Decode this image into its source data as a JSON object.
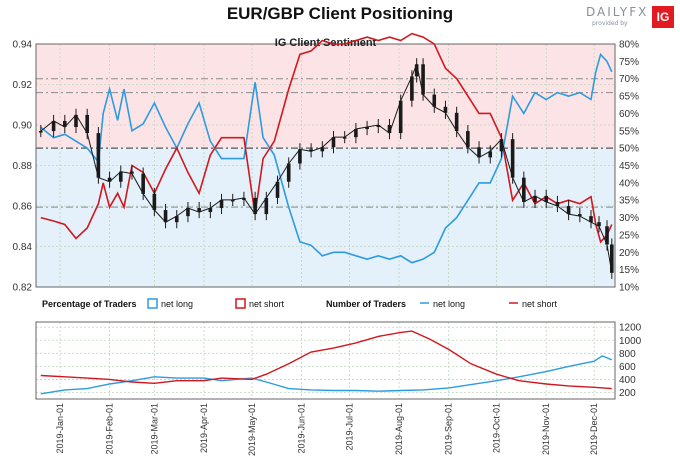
{
  "title": "EUR/GBP Client Positioning",
  "logo": {
    "text": "DAILYFX",
    "subtext": "provided by",
    "badge": "IG"
  },
  "colors": {
    "net_long": "#2e9be0",
    "net_short": "#d2171e",
    "price": "#1a1a1a",
    "short_bg": "#fce4e6",
    "long_bg": "#e4f1fb",
    "grid": "#bfd6bf"
  },
  "legend": {
    "pct_title": "Percentage of Traders",
    "count_title": "Number of Traders",
    "net_long": "net long",
    "net_short": "net short"
  },
  "chart_data": [
    {
      "type": "line",
      "title": "IG Client Sentiment",
      "y_left_ticks": [
        "0.94",
        "0.92",
        "0.90",
        "0.88",
        "0.86",
        "0.84",
        "0.82"
      ],
      "y_left_range": [
        0.82,
        0.94
      ],
      "y_right_ticks": [
        "80%",
        "75%",
        "70%",
        "65%",
        "60%",
        "55%",
        "50%",
        "45%",
        "40%",
        "35%",
        "30%",
        "25%",
        "20%",
        "15%",
        "10%"
      ],
      "y_right_range": [
        10,
        80
      ],
      "reference_levels_pct": [
        70,
        66,
        50,
        33
      ],
      "series": [
        {
          "name": "EUR/GBP",
          "unit": "price",
          "points": [
            [
              "2018-12-20",
              0.897
            ],
            [
              "2018-12-28",
              0.902
            ],
            [
              "2019-01-04",
              0.899
            ],
            [
              "2019-01-11",
              0.905
            ],
            [
              "2019-01-18",
              0.896
            ],
            [
              "2019-01-25",
              0.874
            ],
            [
              "2019-02-01",
              0.872
            ],
            [
              "2019-02-08",
              0.877
            ],
            [
              "2019-02-15",
              0.876
            ],
            [
              "2019-02-22",
              0.866
            ],
            [
              "2019-03-01",
              0.858
            ],
            [
              "2019-03-08",
              0.852
            ],
            [
              "2019-03-15",
              0.855
            ],
            [
              "2019-03-22",
              0.859
            ],
            [
              "2019-03-29",
              0.857
            ],
            [
              "2019-04-05",
              0.859
            ],
            [
              "2019-04-12",
              0.863
            ],
            [
              "2019-04-19",
              0.863
            ],
            [
              "2019-04-26",
              0.864
            ],
            [
              "2019-05-03",
              0.856
            ],
            [
              "2019-05-10",
              0.864
            ],
            [
              "2019-05-17",
              0.872
            ],
            [
              "2019-05-24",
              0.881
            ],
            [
              "2019-05-31",
              0.888
            ],
            [
              "2019-06-07",
              0.887
            ],
            [
              "2019-06-14",
              0.889
            ],
            [
              "2019-06-21",
              0.894
            ],
            [
              "2019-06-28",
              0.894
            ],
            [
              "2019-07-05",
              0.898
            ],
            [
              "2019-07-12",
              0.899
            ],
            [
              "2019-07-19",
              0.9
            ],
            [
              "2019-07-26",
              0.896
            ],
            [
              "2019-08-02",
              0.912
            ],
            [
              "2019-08-09",
              0.924
            ],
            [
              "2019-08-12",
              0.93
            ],
            [
              "2019-08-16",
              0.915
            ],
            [
              "2019-08-23",
              0.909
            ],
            [
              "2019-08-30",
              0.906
            ],
            [
              "2019-09-06",
              0.897
            ],
            [
              "2019-09-13",
              0.889
            ],
            [
              "2019-09-20",
              0.884
            ],
            [
              "2019-09-27",
              0.887
            ],
            [
              "2019-10-04",
              0.893
            ],
            [
              "2019-10-11",
              0.874
            ],
            [
              "2019-10-18",
              0.862
            ],
            [
              "2019-10-25",
              0.865
            ],
            [
              "2019-11-01",
              0.862
            ],
            [
              "2019-11-08",
              0.86
            ],
            [
              "2019-11-15",
              0.856
            ],
            [
              "2019-11-22",
              0.855
            ],
            [
              "2019-11-29",
              0.852
            ],
            [
              "2019-12-04",
              0.85
            ],
            [
              "2019-12-09",
              0.841
            ],
            [
              "2019-12-12",
              0.827
            ]
          ]
        },
        {
          "name": "net long",
          "unit": "percent",
          "points": [
            [
              "2018-12-20",
              56
            ],
            [
              "2018-12-28",
              53
            ],
            [
              "2019-01-04",
              54
            ],
            [
              "2019-01-11",
              52
            ],
            [
              "2019-01-18",
              50
            ],
            [
              "2019-01-25",
              46
            ],
            [
              "2019-01-28",
              60
            ],
            [
              "2019-02-01",
              67
            ],
            [
              "2019-02-06",
              58
            ],
            [
              "2019-02-10",
              67
            ],
            [
              "2019-02-15",
              55
            ],
            [
              "2019-02-22",
              57
            ],
            [
              "2019-03-01",
              63
            ],
            [
              "2019-03-08",
              56
            ],
            [
              "2019-03-15",
              50
            ],
            [
              "2019-03-22",
              57
            ],
            [
              "2019-03-29",
              63
            ],
            [
              "2019-04-05",
              52
            ],
            [
              "2019-04-12",
              47
            ],
            [
              "2019-04-19",
              47
            ],
            [
              "2019-04-26",
              47
            ],
            [
              "2019-05-01",
              63
            ],
            [
              "2019-05-03",
              69
            ],
            [
              "2019-05-08",
              53
            ],
            [
              "2019-05-15",
              48
            ],
            [
              "2019-05-24",
              33
            ],
            [
              "2019-05-31",
              23
            ],
            [
              "2019-06-07",
              22
            ],
            [
              "2019-06-14",
              19
            ],
            [
              "2019-06-21",
              20
            ],
            [
              "2019-06-28",
              20
            ],
            [
              "2019-07-05",
              19
            ],
            [
              "2019-07-12",
              18
            ],
            [
              "2019-07-19",
              19
            ],
            [
              "2019-07-26",
              18
            ],
            [
              "2019-08-02",
              19
            ],
            [
              "2019-08-09",
              17
            ],
            [
              "2019-08-16",
              18
            ],
            [
              "2019-08-23",
              20
            ],
            [
              "2019-08-30",
              27
            ],
            [
              "2019-09-06",
              30
            ],
            [
              "2019-09-13",
              35
            ],
            [
              "2019-09-20",
              40
            ],
            [
              "2019-09-27",
              40
            ],
            [
              "2019-10-04",
              47
            ],
            [
              "2019-10-11",
              65
            ],
            [
              "2019-10-18",
              60
            ],
            [
              "2019-10-25",
              66
            ],
            [
              "2019-11-01",
              64
            ],
            [
              "2019-11-08",
              66
            ],
            [
              "2019-11-15",
              65
            ],
            [
              "2019-11-22",
              66
            ],
            [
              "2019-11-29",
              64
            ],
            [
              "2019-12-02",
              72
            ],
            [
              "2019-12-05",
              77
            ],
            [
              "2019-12-09",
              75
            ],
            [
              "2019-12-12",
              72
            ]
          ]
        },
        {
          "name": "net short",
          "unit": "percent",
          "points": [
            [
              "2018-12-20",
              30
            ],
            [
              "2018-12-28",
              29
            ],
            [
              "2019-01-04",
              28
            ],
            [
              "2019-01-11",
              24
            ],
            [
              "2019-01-18",
              27
            ],
            [
              "2019-01-25",
              34
            ],
            [
              "2019-01-28",
              40
            ],
            [
              "2019-02-01",
              33
            ],
            [
              "2019-02-06",
              37
            ],
            [
              "2019-02-10",
              33
            ],
            [
              "2019-02-15",
              45
            ],
            [
              "2019-02-22",
              43
            ],
            [
              "2019-03-01",
              37
            ],
            [
              "2019-03-08",
              44
            ],
            [
              "2019-03-15",
              50
            ],
            [
              "2019-03-22",
              43
            ],
            [
              "2019-03-29",
              37
            ],
            [
              "2019-04-05",
              48
            ],
            [
              "2019-04-12",
              53
            ],
            [
              "2019-04-19",
              53
            ],
            [
              "2019-04-26",
              53
            ],
            [
              "2019-05-01",
              37
            ],
            [
              "2019-05-03",
              31
            ],
            [
              "2019-05-08",
              47
            ],
            [
              "2019-05-15",
              52
            ],
            [
              "2019-05-24",
              67
            ],
            [
              "2019-05-31",
              77
            ],
            [
              "2019-06-07",
              78
            ],
            [
              "2019-06-14",
              81
            ],
            [
              "2019-06-21",
              80
            ],
            [
              "2019-06-28",
              80
            ],
            [
              "2019-07-05",
              81
            ],
            [
              "2019-07-12",
              82
            ],
            [
              "2019-07-19",
              81
            ],
            [
              "2019-07-26",
              82
            ],
            [
              "2019-08-02",
              81
            ],
            [
              "2019-08-09",
              83
            ],
            [
              "2019-08-16",
              82
            ],
            [
              "2019-08-23",
              80
            ],
            [
              "2019-08-30",
              73
            ],
            [
              "2019-09-06",
              70
            ],
            [
              "2019-09-13",
              65
            ],
            [
              "2019-09-20",
              60
            ],
            [
              "2019-09-27",
              60
            ],
            [
              "2019-10-04",
              53
            ],
            [
              "2019-10-11",
              35
            ],
            [
              "2019-10-18",
              40
            ],
            [
              "2019-10-25",
              34
            ],
            [
              "2019-11-01",
              36
            ],
            [
              "2019-11-08",
              34
            ],
            [
              "2019-11-15",
              35
            ],
            [
              "2019-11-22",
              34
            ],
            [
              "2019-11-29",
              36
            ],
            [
              "2019-12-02",
              28
            ],
            [
              "2019-12-05",
              23
            ],
            [
              "2019-12-09",
              25
            ],
            [
              "2019-12-12",
              28
            ]
          ]
        }
      ]
    },
    {
      "type": "line",
      "title": "Number of Traders",
      "y_right_ticks": [
        "1200",
        "1000",
        "800",
        "600",
        "400",
        "200"
      ],
      "y_range": [
        100,
        1280
      ],
      "x_ticks": [
        "2019-Jan-01",
        "2019-Feb-01",
        "2019-Mar-01",
        "2019-Apr-01",
        "2019-May-01",
        "2019-Jun-01",
        "2019-Jul-01",
        "2019-Aug-01",
        "2019-Sep-01",
        "2019-Oct-01",
        "2019-Nov-01",
        "2019-Dec-01"
      ],
      "series": [
        {
          "name": "net long",
          "points": [
            [
              "2018-12-20",
              180
            ],
            [
              "2019-01-04",
              240
            ],
            [
              "2019-01-18",
              260
            ],
            [
              "2019-02-01",
              330
            ],
            [
              "2019-02-15",
              380
            ],
            [
              "2019-03-01",
              440
            ],
            [
              "2019-03-15",
              420
            ],
            [
              "2019-04-01",
              420
            ],
            [
              "2019-04-12",
              380
            ],
            [
              "2019-05-01",
              420
            ],
            [
              "2019-05-10",
              360
            ],
            [
              "2019-05-24",
              260
            ],
            [
              "2019-06-07",
              240
            ],
            [
              "2019-06-21",
              230
            ],
            [
              "2019-07-05",
              230
            ],
            [
              "2019-07-19",
              220
            ],
            [
              "2019-08-02",
              230
            ],
            [
              "2019-08-16",
              240
            ],
            [
              "2019-09-01",
              270
            ],
            [
              "2019-09-15",
              320
            ],
            [
              "2019-10-01",
              380
            ],
            [
              "2019-10-15",
              440
            ],
            [
              "2019-11-01",
              520
            ],
            [
              "2019-11-15",
              600
            ],
            [
              "2019-12-01",
              680
            ],
            [
              "2019-12-06",
              760
            ],
            [
              "2019-12-12",
              700
            ]
          ]
        },
        {
          "name": "net short",
          "points": [
            [
              "2018-12-20",
              460
            ],
            [
              "2019-01-04",
              440
            ],
            [
              "2019-01-18",
              420
            ],
            [
              "2019-02-01",
              400
            ],
            [
              "2019-02-15",
              360
            ],
            [
              "2019-03-01",
              340
            ],
            [
              "2019-03-15",
              380
            ],
            [
              "2019-04-01",
              380
            ],
            [
              "2019-04-12",
              420
            ],
            [
              "2019-05-01",
              400
            ],
            [
              "2019-05-10",
              480
            ],
            [
              "2019-05-24",
              640
            ],
            [
              "2019-06-07",
              820
            ],
            [
              "2019-06-21",
              880
            ],
            [
              "2019-07-05",
              960
            ],
            [
              "2019-07-19",
              1060
            ],
            [
              "2019-08-02",
              1120
            ],
            [
              "2019-08-09",
              1140
            ],
            [
              "2019-08-20",
              1020
            ],
            [
              "2019-09-01",
              860
            ],
            [
              "2019-09-15",
              640
            ],
            [
              "2019-10-01",
              480
            ],
            [
              "2019-10-15",
              380
            ],
            [
              "2019-11-01",
              330
            ],
            [
              "2019-11-15",
              300
            ],
            [
              "2019-12-01",
              280
            ],
            [
              "2019-12-12",
              260
            ]
          ]
        }
      ]
    }
  ]
}
